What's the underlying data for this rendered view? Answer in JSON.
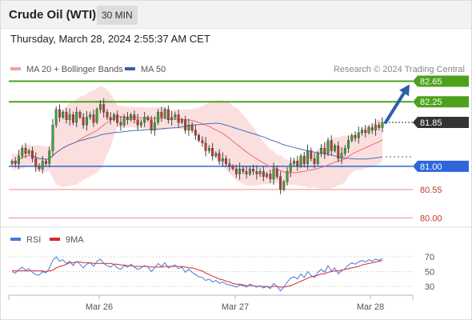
{
  "header": {
    "title": "Crude Oil (WTI)",
    "timeframe": "30 MIN"
  },
  "timestamp": "Thursday, March 28, 2024 2:55:37 AM CET",
  "credit": "Research © 2024 Trading Central",
  "colors": {
    "resistance": "#4ea21b",
    "support": "#2f66d9",
    "minor": "#f08a8a",
    "current": "#333333",
    "arrow": "#2b5fa8",
    "bullish": "#3aa43a",
    "bearish": "#c43a31",
    "bollinger": "#f9d4d4",
    "ma20": "#f26b6b",
    "ma50": "#4a6fb5",
    "rsi": "#4a78d8",
    "ma9": "#d9262c"
  },
  "chart_data": [
    {
      "type": "candlestick",
      "legend": [
        {
          "name": "MA 20 + Bollinger Bands",
          "color": "#f4a0a0"
        },
        {
          "name": "MA 50",
          "color": "#3b5da0"
        }
      ],
      "ylim": [
        79.85,
        82.75
      ],
      "x_ticks": [
        "Mar 26",
        "Mar 27",
        "Mar 28"
      ],
      "levels": [
        {
          "value": 82.65,
          "label": "82.65",
          "kind": "resistance"
        },
        {
          "value": 82.25,
          "label": "82.25",
          "kind": "resistance"
        },
        {
          "value": 81.85,
          "label": "81.85",
          "kind": "current"
        },
        {
          "value": 81.0,
          "label": "81.00",
          "kind": "support"
        },
        {
          "value": 80.55,
          "label": "80.55",
          "kind": "minor"
        },
        {
          "value": 80.0,
          "label": "80.00",
          "kind": "minor"
        }
      ],
      "projection": {
        "from": 81.85,
        "to": 82.65
      },
      "close": [
        81.1,
        81.05,
        81.2,
        81.35,
        81.25,
        81.3,
        81.15,
        81.0,
        80.95,
        81.1,
        81.05,
        81.3,
        81.8,
        82.1,
        81.95,
        82.05,
        81.9,
        82.0,
        81.85,
        82.05,
        81.95,
        81.8,
        81.95,
        82.0,
        81.85,
        82.1,
        82.2,
        82.05,
        81.95,
        81.9,
        82.0,
        81.85,
        81.8,
        81.95,
        81.9,
        82.0,
        81.9,
        81.8,
        81.85,
        81.95,
        81.9,
        81.7,
        81.85,
        82.05,
        81.95,
        82.1,
        81.9,
        81.95,
        82.0,
        81.85,
        81.9,
        81.7,
        81.8,
        81.7,
        81.6,
        81.5,
        81.45,
        81.3,
        81.35,
        81.2,
        81.25,
        81.1,
        81.15,
        81.05,
        81.0,
        80.95,
        80.85,
        80.95,
        80.9,
        80.85,
        80.95,
        80.9,
        80.85,
        80.9,
        80.8,
        80.85,
        80.75,
        80.95,
        80.8,
        80.55,
        80.7,
        80.9,
        81.05,
        81.1,
        81.0,
        81.2,
        81.05,
        81.3,
        81.15,
        81.05,
        81.25,
        81.35,
        81.25,
        81.5,
        81.3,
        81.4,
        81.15,
        81.25,
        81.35,
        81.5,
        81.6,
        81.55,
        81.65,
        81.7,
        81.65,
        81.75,
        81.7,
        81.8,
        81.75,
        81.85
      ]
    },
    {
      "type": "line",
      "legend": [
        {
          "name": "RSI",
          "color": "#4a78d8"
        },
        {
          "name": "9MA",
          "color": "#d9262c"
        }
      ],
      "ylim": [
        20,
        80
      ],
      "y_ticks": [
        70,
        50,
        30
      ],
      "series": [
        {
          "name": "RSI",
          "values": [
            50,
            48,
            53,
            56,
            52,
            54,
            49,
            46,
            45,
            50,
            48,
            55,
            65,
            70,
            64,
            66,
            61,
            64,
            58,
            64,
            60,
            55,
            60,
            62,
            57,
            64,
            67,
            61,
            58,
            56,
            60,
            55,
            53,
            58,
            56,
            60,
            56,
            53,
            55,
            58,
            56,
            50,
            55,
            61,
            57,
            62,
            55,
            57,
            59,
            54,
            56,
            49,
            53,
            49,
            46,
            43,
            42,
            38,
            40,
            36,
            38,
            34,
            36,
            33,
            32,
            31,
            29,
            32,
            31,
            29,
            33,
            31,
            29,
            31,
            28,
            30,
            27,
            34,
            30,
            24,
            29,
            36,
            41,
            43,
            40,
            47,
            42,
            50,
            45,
            42,
            49,
            53,
            49,
            58,
            51,
            55,
            47,
            51,
            54,
            59,
            62,
            60,
            63,
            65,
            63,
            66,
            64,
            67,
            65,
            68
          ]
        },
        {
          "name": "9MA",
          "values": [
            51,
            51,
            51,
            51,
            51,
            51,
            51,
            51,
            51,
            51,
            50,
            51,
            52,
            55,
            57,
            58,
            60,
            62,
            62,
            63,
            63,
            62,
            62,
            62,
            61,
            61,
            61,
            61,
            61,
            61,
            60,
            60,
            59,
            59,
            58,
            58,
            57,
            57,
            57,
            57,
            57,
            56,
            56,
            56,
            56,
            57,
            57,
            57,
            57,
            57,
            57,
            56,
            55,
            55,
            54,
            52,
            51,
            48,
            46,
            44,
            42,
            40,
            39,
            37,
            36,
            34,
            33,
            33,
            32,
            31,
            31,
            31,
            30,
            30,
            30,
            30,
            29,
            30,
            30,
            29,
            29,
            30,
            31,
            33,
            35,
            37,
            39,
            41,
            43,
            44,
            45,
            47,
            47,
            49,
            50,
            51,
            51,
            52,
            53,
            54,
            55,
            56,
            57,
            59,
            60,
            61,
            62,
            63,
            64,
            65
          ]
        }
      ]
    }
  ]
}
